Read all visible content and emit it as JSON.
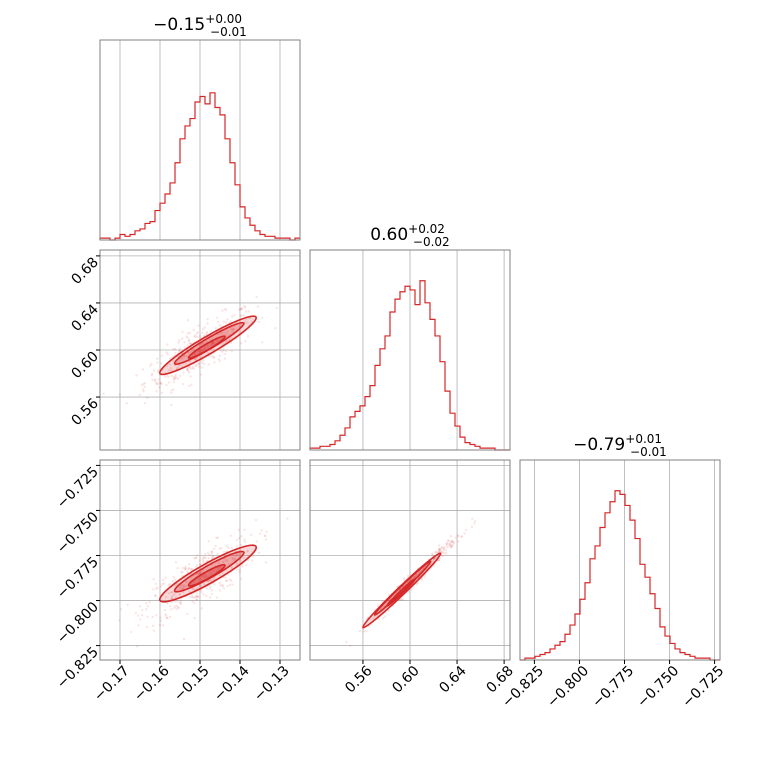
{
  "colors": {
    "accent": "#d62728",
    "grid": "#b0b0b0",
    "frame": "#808080"
  },
  "chart_data": {
    "type": "corner",
    "grid": true,
    "parameters": [
      {
        "median": -0.15,
        "plus": 0.0,
        "minus": 0.01,
        "title": {
          "base": "−0.15",
          "sup": "+0.00",
          "sub": "−0.01"
        },
        "range": [
          -0.175,
          -0.125
        ],
        "ticks": [
          -0.17,
          -0.16,
          -0.15,
          -0.14,
          -0.13
        ],
        "tick_labels": [
          "−0.17",
          "−0.16",
          "−0.15",
          "−0.14",
          "−0.13"
        ]
      },
      {
        "median": 0.6,
        "plus": 0.02,
        "minus": 0.02,
        "title": {
          "base": "0.60",
          "sup": "+0.02",
          "sub": "−0.02"
        },
        "range": [
          0.515,
          0.685
        ],
        "ticks": [
          0.56,
          0.6,
          0.64,
          0.68
        ],
        "tick_labels": [
          "0.56",
          "0.60",
          "0.64",
          "0.68"
        ]
      },
      {
        "median": -0.79,
        "plus": 0.01,
        "minus": 0.01,
        "title": {
          "base": "−0.79",
          "sup": "+0.01",
          "sub": "−0.01"
        },
        "range": [
          -0.833,
          -0.722
        ],
        "ticks": [
          -0.825,
          -0.8,
          -0.775,
          -0.75,
          -0.725
        ],
        "tick_labels": [
          "−0.825",
          "−0.800",
          "−0.775",
          "−0.750",
          "−0.725"
        ]
      }
    ],
    "histograms": [
      {
        "param": 0,
        "bin_edges_range": [
          -0.175,
          -0.125
        ],
        "counts": [
          0.01,
          0.01,
          0.0,
          0.01,
          0.03,
          0.02,
          0.03,
          0.05,
          0.06,
          0.09,
          0.1,
          0.16,
          0.2,
          0.25,
          0.31,
          0.42,
          0.55,
          0.62,
          0.66,
          0.75,
          0.78,
          0.74,
          0.8,
          0.72,
          0.68,
          0.55,
          0.42,
          0.3,
          0.18,
          0.12,
          0.08,
          0.05,
          0.03,
          0.02,
          0.02,
          0.01,
          0.01,
          0.01,
          0.0,
          0.01
        ]
      },
      {
        "param": 1,
        "bin_edges_range": [
          0.515,
          0.685
        ],
        "counts": [
          0.01,
          0.01,
          0.02,
          0.02,
          0.03,
          0.05,
          0.08,
          0.12,
          0.18,
          0.21,
          0.24,
          0.29,
          0.35,
          0.46,
          0.55,
          0.62,
          0.75,
          0.82,
          0.86,
          0.89,
          0.87,
          0.79,
          0.92,
          0.8,
          0.71,
          0.62,
          0.48,
          0.32,
          0.2,
          0.13,
          0.07,
          0.04,
          0.03,
          0.02,
          0.01,
          0.01,
          0.01,
          0.0,
          0.0,
          0.0
        ]
      },
      {
        "param": 2,
        "bin_edges_range": [
          -0.833,
          -0.722
        ],
        "counts": [
          0.0,
          0.01,
          0.01,
          0.02,
          0.03,
          0.04,
          0.06,
          0.08,
          0.1,
          0.14,
          0.19,
          0.25,
          0.33,
          0.42,
          0.55,
          0.62,
          0.72,
          0.8,
          0.86,
          0.92,
          0.9,
          0.84,
          0.76,
          0.66,
          0.52,
          0.45,
          0.36,
          0.28,
          0.18,
          0.13,
          0.09,
          0.06,
          0.04,
          0.03,
          0.02,
          0.01,
          0.01,
          0.01,
          0.0,
          0.0
        ]
      }
    ],
    "pairs": [
      {
        "x_param": 0,
        "y_param": 1,
        "slope": 2.0,
        "intercept": 0.9,
        "width": 0.006,
        "span": [
          -0.16,
          -0.136
        ]
      },
      {
        "x_param": 0,
        "y_param": 2,
        "slope": 1.25,
        "intercept": -0.6,
        "width": 0.0045,
        "span": [
          -0.16,
          -0.136
        ]
      },
      {
        "x_param": 1,
        "y_param": 2,
        "slope": 0.625,
        "intercept": -1.165,
        "width": 0.0012,
        "span": [
          0.56,
          0.626
        ]
      }
    ]
  }
}
